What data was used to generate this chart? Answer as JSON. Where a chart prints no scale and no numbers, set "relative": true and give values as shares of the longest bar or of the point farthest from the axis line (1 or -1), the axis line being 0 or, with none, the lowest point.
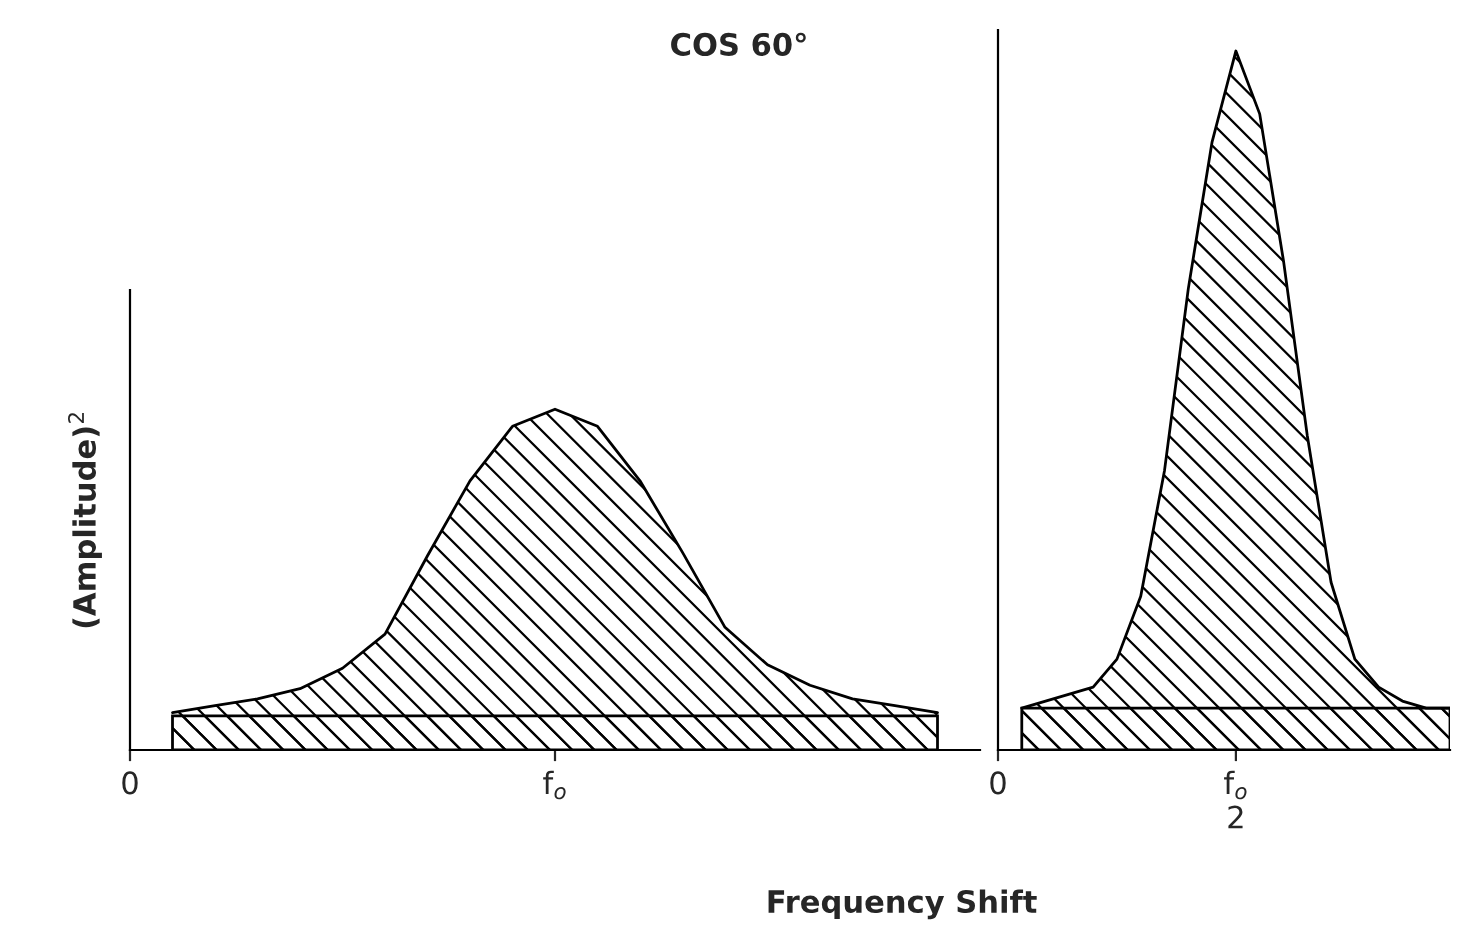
{
  "chart_data": [
    {
      "type": "area",
      "title": "COS 60°",
      "xlabel": "Frequency Shift",
      "ylabel": "(Amplitude)$^{2}$",
      "relative": true,
      "tick_labels": "x",
      "categories": [
        "0",
        null,
        null,
        null,
        null,
        null,
        null,
        null,
        null,
        null,
        "f$_{o}$",
        null,
        null,
        null,
        null,
        null,
        null,
        null,
        null,
        null,
        null
      ],
      "bands": [
        {
          "axis": "y",
          "from": 0,
          "to": 0.1,
          "color": "#000000"
        }
      ],
      "series": [
        {
          "color": "#000000",
          "values": [
            null,
            0.11,
            0.13,
            0.15,
            0.18,
            0.24,
            0.34,
            0.57,
            0.79,
            0.95,
            1.0,
            0.95,
            0.79,
            0.58,
            0.36,
            0.25,
            0.19,
            0.15,
            0.13,
            0.11,
            null
          ]
        }
      ]
    },
    {
      "type": "area",
      "relative": true,
      "tick_labels": "x",
      "categories": [
        "0",
        null,
        null,
        null,
        null,
        null,
        null,
        null,
        null,
        null,
        "f$_{o}$\n2",
        null,
        null,
        null,
        null,
        null,
        null,
        null,
        null,
        null
      ],
      "bands": [
        {
          "axis": "y",
          "from": 0,
          "to": 0.06,
          "color": "#000000"
        }
      ],
      "series": [
        {
          "color": "#000000",
          "values": [
            null,
            0.06,
            0.07,
            0.08,
            0.09,
            0.13,
            0.22,
            0.4,
            0.66,
            0.87,
            1.0,
            0.91,
            0.7,
            0.45,
            0.24,
            0.13,
            0.09,
            0.07,
            0.06,
            0.06
          ]
        }
      ]
    }
  ]
}
